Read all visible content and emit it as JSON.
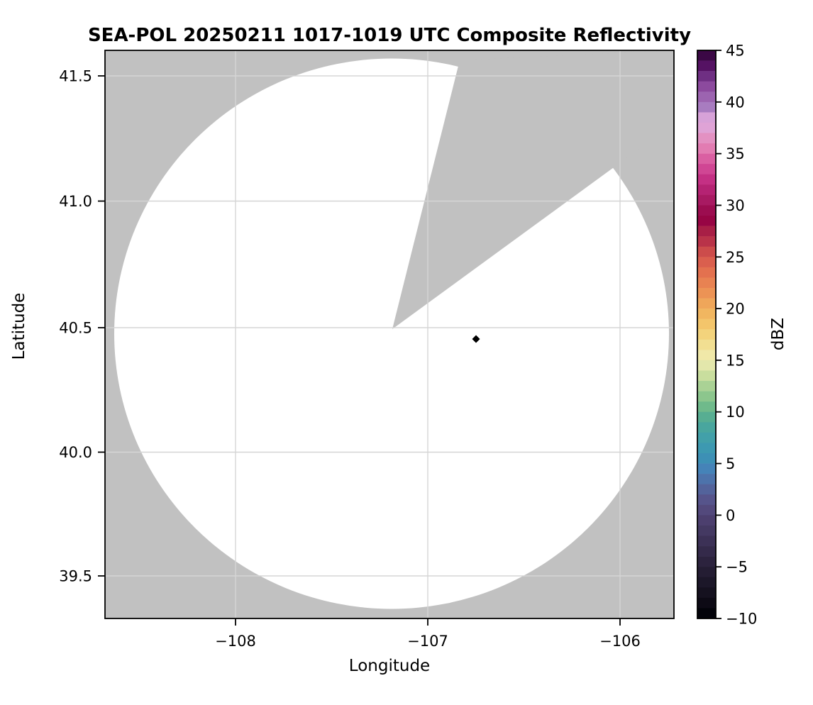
{
  "title": "SEA-POL 20250211 1017-1019 UTC Composite Reflectivity",
  "axes": {
    "xlabel": "Longitude",
    "ylabel": "Latitude",
    "x_tick_labels": [
      "−108",
      "−107",
      "−106"
    ],
    "y_tick_labels": [
      "41.5",
      "41.0",
      "40.5",
      "40.0",
      "39.5"
    ]
  },
  "colorbar": {
    "label": "dBZ",
    "range": [
      -10,
      45
    ],
    "ticks": [
      45,
      40,
      35,
      30,
      25,
      20,
      15,
      10,
      5,
      0,
      -5,
      -10
    ],
    "tick_labels": [
      "45",
      "40",
      "35",
      "30",
      "25",
      "20",
      "15",
      "10",
      "5",
      "0",
      "−5",
      "−10"
    ],
    "band_step_dbz": 1,
    "bands_top_to_bottom": [
      "#3b0845",
      "#551263",
      "#6f2f83",
      "#8c4a9e",
      "#9c64b0",
      "#a87cc0",
      "#d7a2d8",
      "#dfa3d6",
      "#e391c2",
      "#e27cb2",
      "#da5fa2",
      "#d04694",
      "#c43084",
      "#b52373",
      "#a81a62",
      "#9c0d50",
      "#970544",
      "#a81f46",
      "#b93349",
      "#cc4c4b",
      "#da5f4e",
      "#e3714f",
      "#e88252",
      "#ec9355",
      "#efa65a",
      "#f1b660",
      "#f3c56b",
      "#f3d37c",
      "#f2df92",
      "#f0e8a8",
      "#e3e7ab",
      "#c9de9e",
      "#aad295",
      "#8cc68d",
      "#6fba8b",
      "#57ae92",
      "#49a69e",
      "#42a0a9",
      "#3d99b1",
      "#3d90b5",
      "#4583b8",
      "#4d73ab",
      "#53639b",
      "#56548b",
      "#53497c",
      "#4c3f6e",
      "#443962",
      "#3c3156",
      "#342a4a",
      "#2c233e",
      "#241d33",
      "#1c1729",
      "#15111f",
      "#0d0a15",
      "#03030a"
    ]
  },
  "colors": {
    "no_data_gray": "#c1c1c1",
    "coverage_white": "#ffffff",
    "grid_line": "#d5d5d5",
    "axis_black": "#000000",
    "marker_black": "#000000"
  },
  "chart_data": {
    "type": "heatmap",
    "title": "SEA-POL 20250211 1017-1019 UTC Composite Reflectivity",
    "xlabel": "Longitude",
    "ylabel": "Latitude",
    "xlim": [
      -108.68,
      -105.72
    ],
    "ylim": [
      39.33,
      41.61
    ],
    "x_ticks": [
      -108,
      -107,
      -106
    ],
    "y_ticks": [
      41.5,
      41.0,
      40.5,
      40.0,
      39.5
    ],
    "grid": true,
    "colorbar_label": "dBZ",
    "colorbar_range": [
      -10,
      45
    ],
    "colorbar_tick_step": 5,
    "radar_coverage": {
      "description": "White disc = radar scan coverage (no echoes above threshold); surrounding gray = no data",
      "center_lon": -107.185,
      "center_lat": 40.497,
      "radius_lon_deg": 1.44,
      "radius_lat_deg": 1.1,
      "blocked_sector": {
        "apex_lon": -107.185,
        "apex_lat": 40.497,
        "azimuth_start_deg_from_north": 14,
        "azimuth_end_deg_from_north": 55
      }
    },
    "marker": {
      "lon": -106.745,
      "lat": 40.455,
      "symbol": "diamond",
      "color": "#000000"
    },
    "reflectivity_points": []
  }
}
